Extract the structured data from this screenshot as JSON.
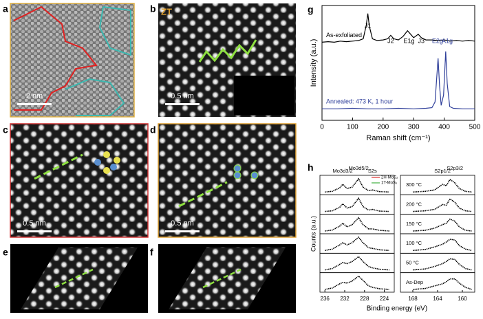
{
  "panels": [
    {
      "label": "a",
      "scale_bar": "2 nm"
    },
    {
      "label": "b",
      "scale_bar": "0.5 nm",
      "tag": "ZT"
    },
    {
      "label": "c",
      "scale_bar": "0.5 nm"
    },
    {
      "label": "d",
      "scale_bar": "0.5 nm"
    },
    {
      "label": "e"
    },
    {
      "label": "f"
    }
  ],
  "chart_data": [
    {
      "label": "g",
      "type": "line",
      "xlabel": "Raman shift (cm⁻¹)",
      "ylabel": "Intensity (a.u.)",
      "xlim": [
        0,
        500
      ],
      "xticks": [
        0,
        100,
        200,
        300,
        400,
        500
      ],
      "ylim": [
        0,
        10
      ],
      "series": [
        {
          "name": "As-exfoliated",
          "color": "#000000",
          "x": [
            0,
            20,
            40,
            60,
            80,
            100,
            120,
            135,
            145,
            150,
            155,
            165,
            180,
            200,
            215,
            225,
            235,
            250,
            265,
            280,
            290,
            300,
            315,
            325,
            340,
            360,
            380,
            400,
            420,
            440,
            460,
            480,
            500
          ],
          "values": [
            6.8,
            6.85,
            6.8,
            6.9,
            6.85,
            6.9,
            6.95,
            7.1,
            8.3,
            9.3,
            8.2,
            7.1,
            6.95,
            7.0,
            7.1,
            7.4,
            7.1,
            7.0,
            7.3,
            7.8,
            7.5,
            7.2,
            7.5,
            7.2,
            7.0,
            7.0,
            6.95,
            7.0,
            6.9,
            6.95,
            6.9,
            6.95,
            6.9
          ]
        },
        {
          "name": "Annealed: 473 K, 1 hour",
          "color": "#2f3f9a",
          "x": [
            0,
            50,
            100,
            150,
            200,
            250,
            300,
            340,
            360,
            370,
            375,
            380,
            385,
            390,
            398,
            405,
            410,
            418,
            430,
            460,
            500
          ],
          "values": [
            1.0,
            1.0,
            1.05,
            1.0,
            1.0,
            1.05,
            1.0,
            1.05,
            1.1,
            1.6,
            3.5,
            5.4,
            3.0,
            1.3,
            2.2,
            6.0,
            3.2,
            1.2,
            1.05,
            1.0,
            1.0
          ]
        }
      ],
      "annotations": [
        {
          "text": "J1",
          "x": 150,
          "color": "#000000"
        },
        {
          "text": "J2",
          "x": 225,
          "color": "#000000"
        },
        {
          "text": "E1g",
          "x": 285,
          "color": "#000000"
        },
        {
          "text": "J3",
          "x": 325,
          "color": "#000000"
        },
        {
          "text": "E2g",
          "x": 378,
          "color": "#2f3f9a"
        },
        {
          "text": "A1g",
          "x": 410,
          "color": "#2f3f9a"
        }
      ]
    },
    {
      "label": "h",
      "type": "line",
      "ylabel": "Counts (a.u.)",
      "xlabel": "Binding energy (eV)",
      "legend": [
        {
          "name": "2H-MoS₂",
          "color": "#e03030"
        },
        {
          "name": "1T-MoS₂",
          "color": "#40b040"
        }
      ],
      "subplots": [
        {
          "xlim": [
            237,
            222
          ],
          "xticks": [
            236,
            232,
            228,
            224
          ],
          "x": [
            236,
            234.5,
            233,
            232.4,
            231.5,
            230.5,
            229.2,
            228.3,
            227.2,
            226.4,
            225,
            223
          ],
          "peaks": [
            {
              "text": "Mo3d3/2",
              "x": 232.4
            },
            {
              "text": "Mo3d5/2",
              "x": 229.2
            },
            {
              "text": "S2s",
              "x": 226.4
            }
          ],
          "series": [
            {
              "values": [
                0.05,
                0.1,
                0.35,
                0.6,
                0.3,
                0.4,
                1.0,
                0.4,
                0.15,
                0.2,
                0.08,
                0.05
              ]
            },
            {
              "values": [
                0.05,
                0.1,
                0.35,
                0.6,
                0.3,
                0.4,
                1.0,
                0.4,
                0.15,
                0.2,
                0.08,
                0.05
              ]
            },
            {
              "values": [
                0.05,
                0.12,
                0.4,
                0.6,
                0.35,
                0.5,
                1.0,
                0.5,
                0.2,
                0.2,
                0.1,
                0.05
              ]
            },
            {
              "values": [
                0.05,
                0.15,
                0.45,
                0.6,
                0.45,
                0.6,
                1.0,
                0.6,
                0.25,
                0.2,
                0.1,
                0.05
              ]
            },
            {
              "values": [
                0.05,
                0.15,
                0.45,
                0.58,
                0.5,
                0.65,
                1.0,
                0.65,
                0.3,
                0.2,
                0.1,
                0.05
              ]
            },
            {
              "values": [
                0.05,
                0.15,
                0.45,
                0.55,
                0.5,
                0.65,
                1.0,
                0.7,
                0.3,
                0.2,
                0.1,
                0.05
              ]
            }
          ]
        },
        {
          "xlim": [
            170,
            158
          ],
          "xticks": [
            168,
            164,
            160
          ],
          "x": [
            168,
            166,
            164.5,
            163.2,
            162.6,
            162,
            161.2,
            160.5,
            159.5,
            158.5
          ],
          "peaks": [
            {
              "text": "S2p1/2",
              "x": 163.2
            },
            {
              "text": "S2p3/2",
              "x": 161.2
            }
          ],
          "series": [
            {
              "name": "300 °C",
              "values": [
                0.05,
                0.1,
                0.2,
                0.6,
                0.5,
                0.95,
                0.7,
                0.3,
                0.1,
                0.05
              ]
            },
            {
              "name": "200 °C",
              "values": [
                0.05,
                0.1,
                0.2,
                0.55,
                0.5,
                0.95,
                0.7,
                0.3,
                0.1,
                0.05
              ]
            },
            {
              "name": "150 °C",
              "values": [
                0.05,
                0.1,
                0.25,
                0.5,
                0.6,
                0.9,
                0.75,
                0.35,
                0.1,
                0.05
              ]
            },
            {
              "name": "100 °C",
              "values": [
                0.05,
                0.12,
                0.3,
                0.5,
                0.65,
                0.85,
                0.8,
                0.4,
                0.15,
                0.05
              ]
            },
            {
              "name": "50 °C",
              "values": [
                0.05,
                0.12,
                0.3,
                0.5,
                0.65,
                0.85,
                0.8,
                0.45,
                0.15,
                0.05
              ]
            },
            {
              "name": "As-Dep",
              "values": [
                0.05,
                0.12,
                0.3,
                0.45,
                0.6,
                0.8,
                0.8,
                0.5,
                0.2,
                0.05
              ]
            }
          ]
        }
      ]
    }
  ]
}
